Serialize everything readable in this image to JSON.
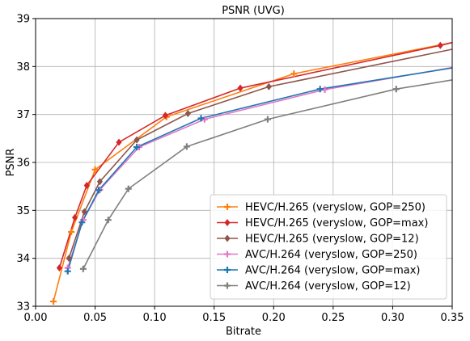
{
  "chart_data": {
    "type": "line",
    "title": "PSNR (UVG)",
    "xlabel": "Bitrate",
    "ylabel": "PSNR",
    "xlim": [
      0.0,
      0.35
    ],
    "ylim": [
      33,
      39
    ],
    "xticks": [
      "0.00",
      "0.05",
      "0.10",
      "0.15",
      "0.20",
      "0.25",
      "0.30",
      "0.35"
    ],
    "yticks": [
      "33",
      "34",
      "35",
      "36",
      "37",
      "38",
      "39"
    ],
    "grid": true,
    "legend_position": "lower-right",
    "series": [
      {
        "name": "HEVC/H.265 (veryslow, GOP=250)",
        "color": "#ff7f0e",
        "marker": "plus",
        "x": [
          0.015,
          0.03,
          0.05,
          0.11,
          0.217,
          0.35
        ],
        "y": [
          33.1,
          34.55,
          35.85,
          36.95,
          37.85,
          38.5
        ]
      },
      {
        "name": "HEVC/H.265 (veryslow, GOP=max)",
        "color": "#d62728",
        "marker": "diamond",
        "x": [
          0.02,
          0.033,
          0.043,
          0.07,
          0.109,
          0.172,
          0.34,
          0.35
        ],
        "y": [
          33.8,
          34.85,
          35.52,
          36.42,
          36.98,
          37.55,
          38.44,
          38.5
        ]
      },
      {
        "name": "HEVC/H.265 (veryslow, GOP=12)",
        "color": "#8c564b",
        "marker": "diamond",
        "x": [
          0.028,
          0.041,
          0.054,
          0.085,
          0.128,
          0.196,
          0.35
        ],
        "y": [
          34.0,
          34.97,
          35.6,
          36.47,
          37.02,
          37.58,
          38.36
        ]
      },
      {
        "name": "AVC/H.264 (veryslow, GOP=250)",
        "color": "#e377c2",
        "marker": "plus",
        "x": [
          0.027,
          0.04,
          0.054,
          0.087,
          0.142,
          0.243,
          0.35
        ],
        "y": [
          33.8,
          34.8,
          35.43,
          36.32,
          36.9,
          37.52,
          37.98
        ]
      },
      {
        "name": "AVC/H.264 (veryslow, GOP=max)",
        "color": "#1f77b4",
        "marker": "plus",
        "x": [
          0.027,
          0.039,
          0.053,
          0.085,
          0.139,
          0.239,
          0.35
        ],
        "y": [
          33.73,
          34.75,
          35.42,
          36.32,
          36.92,
          37.53,
          37.97
        ]
      },
      {
        "name": "AVC/H.264 (veryslow, GOP=12)",
        "color": "#7f7f7f",
        "marker": "plus",
        "x": [
          0.04,
          0.061,
          0.078,
          0.127,
          0.195,
          0.303,
          0.35
        ],
        "y": [
          33.78,
          34.8,
          35.45,
          36.33,
          36.9,
          37.53,
          37.72
        ]
      }
    ]
  }
}
